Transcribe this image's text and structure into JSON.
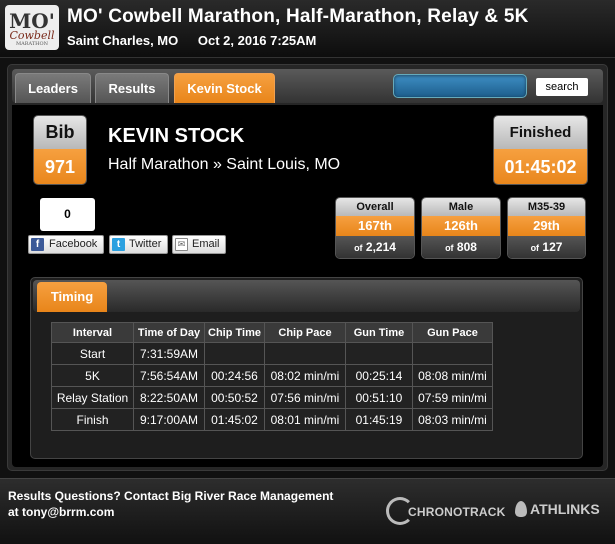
{
  "header": {
    "logo": {
      "line1": "MO'",
      "line2": "Cowbell",
      "line3": "MARATHON"
    },
    "title": "MO' Cowbell Marathon, Half-Marathon, Relay & 5K",
    "location": "Saint Charles, MO",
    "datetime": "Oct 2, 2016 7:25AM"
  },
  "tabs": [
    {
      "label": "Leaders",
      "active": false
    },
    {
      "label": "Results",
      "active": false
    },
    {
      "label": "Kevin Stock",
      "active": true
    }
  ],
  "search": {
    "value": "",
    "button_label": "search"
  },
  "athlete": {
    "bib_label": "Bib",
    "bib": "971",
    "name": "KEVIN STOCK",
    "info": "Half Marathon » Saint Louis, MO",
    "finished_label": "Finished",
    "finish_time": "01:45:02"
  },
  "share": {
    "count": "0",
    "facebook": "Facebook",
    "twitter": "Twitter",
    "email": "Email"
  },
  "rankings": [
    {
      "label": "Overall",
      "place": "167th",
      "of_label": "of",
      "total": "2,214"
    },
    {
      "label": "Male",
      "place": "126th",
      "of_label": "of",
      "total": "808"
    },
    {
      "label": "M35-39",
      "place": "29th",
      "of_label": "of",
      "total": "127"
    }
  ],
  "timing": {
    "tab_label": "Timing",
    "columns": [
      "Interval",
      "Time of Day",
      "Chip Time",
      "Chip Pace",
      "Gun Time",
      "Gun Pace"
    ],
    "rows": [
      [
        "Start",
        "7:31:59AM",
        "",
        "",
        "",
        ""
      ],
      [
        "5K",
        "7:56:54AM",
        "00:24:56",
        "08:02 min/mi",
        "00:25:14",
        "08:08 min/mi"
      ],
      [
        "Relay Station",
        "8:22:50AM",
        "00:50:52",
        "07:56 min/mi",
        "00:51:10",
        "07:59 min/mi"
      ],
      [
        "Finish",
        "9:17:00AM",
        "01:45:02",
        "08:01 min/mi",
        "01:45:19",
        "08:03 min/mi"
      ]
    ]
  },
  "footer": {
    "contact": "Results Questions? Contact Big River Race Management at tony@brrm.com",
    "chronotrack": "CHRONOTRACK",
    "athlinks": "ATHLINKS"
  },
  "colors": {
    "accent": "#e8851a",
    "header_bg": "#1a1a1a",
    "panel_bg": "#262626"
  },
  "icons": [
    "facebook-icon",
    "twitter-icon",
    "email-icon",
    "chronotrack-logo",
    "athlinks-logo"
  ]
}
